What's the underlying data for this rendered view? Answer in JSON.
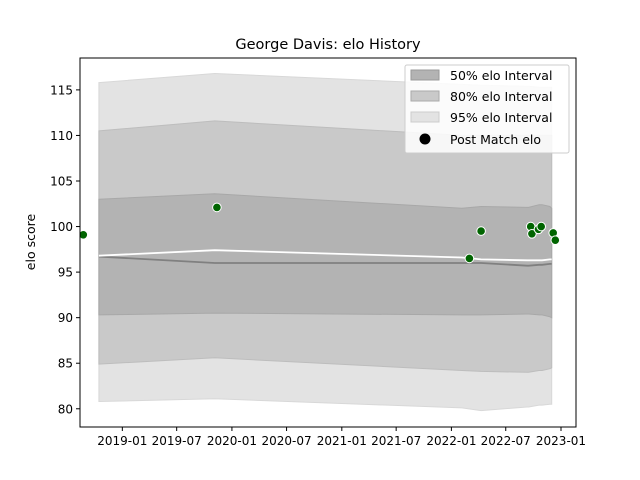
{
  "chart_data": {
    "type": "line",
    "title": "George Davis: elo History",
    "xlabel": "",
    "ylabel": "elo score",
    "xlim": [
      "2018-08-13",
      "2023-02-20"
    ],
    "ylim": [
      78,
      118.5
    ],
    "x_ticks": [
      "2019-01",
      "2019-07",
      "2020-01",
      "2020-07",
      "2021-01",
      "2021-07",
      "2022-01",
      "2022-07",
      "2023-01"
    ],
    "y_ticks": [
      80,
      85,
      90,
      95,
      100,
      105,
      110,
      115
    ],
    "grid": false,
    "legend_position": "top-right",
    "legend": [
      {
        "label": "50% elo Interval",
        "color": "#b0b0b0"
      },
      {
        "label": "80% elo Interval",
        "color": "#c9c9c9"
      },
      {
        "label": "95% elo Interval",
        "color": "#e4e4e4"
      },
      {
        "label": "Post Match elo",
        "color": "#000000"
      }
    ],
    "dates": [
      "2018-10-15",
      "2019-11-05",
      "2022-02-05",
      "2022-04-10",
      "2022-09-10",
      "2022-09-15",
      "2022-10-20",
      "2022-10-30",
      "2022-11-25",
      "2022-12-01"
    ],
    "mean": [
      96.7,
      96.0,
      96.0,
      96.0,
      95.7,
      95.7,
      95.8,
      95.8,
      95.9,
      95.9
    ],
    "mean_estimate": [
      96.8,
      97.4,
      96.6,
      96.4,
      96.3,
      96.3,
      96.3,
      96.3,
      96.4,
      96.4
    ],
    "band_50": {
      "lower": [
        90.3,
        90.5,
        90.3,
        90.3,
        90.4,
        90.4,
        90.3,
        90.3,
        90.1,
        90.0
      ],
      "upper": [
        103.0,
        103.6,
        102.0,
        102.2,
        102.1,
        102.1,
        102.4,
        102.4,
        102.2,
        102.0
      ]
    },
    "band_80": {
      "lower": [
        84.9,
        85.6,
        84.2,
        84.1,
        84.0,
        84.0,
        84.2,
        84.2,
        84.4,
        84.5
      ],
      "upper": [
        110.5,
        111.6,
        110.0,
        110.0,
        110.0,
        110.0,
        110.0,
        110.0,
        110.0,
        110.0
      ]
    },
    "band_95": {
      "lower": [
        80.8,
        81.1,
        80.1,
        79.8,
        80.2,
        80.2,
        80.4,
        80.4,
        80.5,
        80.5
      ],
      "upper": [
        115.8,
        116.8,
        115.6,
        115.5,
        115.4,
        115.4,
        115.3,
        115.3,
        115.3,
        115.3
      ]
    },
    "points": [
      {
        "x": "2018-08-24",
        "y": 99.1
      },
      {
        "x": "2019-11-12",
        "y": 102.1
      },
      {
        "x": "2022-03-02",
        "y": 96.5
      },
      {
        "x": "2022-04-10",
        "y": 99.5
      },
      {
        "x": "2022-09-22",
        "y": 100.0
      },
      {
        "x": "2022-09-26",
        "y": 99.2
      },
      {
        "x": "2022-10-18",
        "y": 99.7
      },
      {
        "x": "2022-10-27",
        "y": 100.0
      },
      {
        "x": "2022-12-06",
        "y": 99.3
      },
      {
        "x": "2022-12-13",
        "y": 98.5
      }
    ],
    "colors": {
      "band_50": "#b3b3b3",
      "band_80": "#c9c9c9",
      "band_95": "#e3e3e3",
      "mean_line": "#808080",
      "estimate_line": "#ffffff",
      "points": "#006400"
    }
  }
}
